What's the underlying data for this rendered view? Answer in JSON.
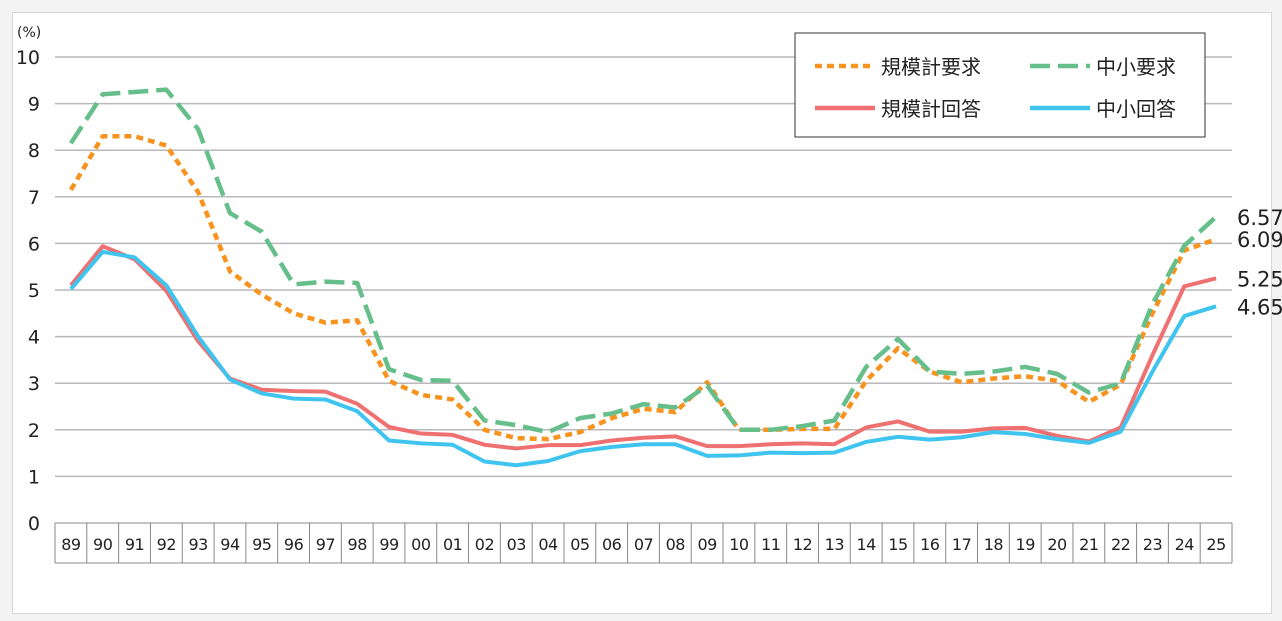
{
  "chart_data": {
    "type": "line",
    "ylabel": "(%)",
    "ylim": [
      0,
      10
    ],
    "yticks": [
      0,
      1,
      2,
      3,
      4,
      5,
      6,
      7,
      8,
      9,
      10
    ],
    "grid": true,
    "legend_position": "top-right",
    "categories": [
      "89",
      "90",
      "91",
      "92",
      "93",
      "94",
      "95",
      "96",
      "97",
      "98",
      "99",
      "00",
      "01",
      "02",
      "03",
      "04",
      "05",
      "06",
      "07",
      "08",
      "09",
      "10",
      "11",
      "12",
      "13",
      "14",
      "15",
      "16",
      "17",
      "18",
      "19",
      "20",
      "21",
      "22",
      "23",
      "24",
      "25"
    ],
    "series": [
      {
        "name": "規模計要求",
        "color": "#f7931e",
        "dash": "dotted",
        "values": [
          7.15,
          8.3,
          8.3,
          8.1,
          7.1,
          5.4,
          4.9,
          4.5,
          4.3,
          4.35,
          3.05,
          2.75,
          2.65,
          2.0,
          1.82,
          1.8,
          1.95,
          2.25,
          2.45,
          2.38,
          3.02,
          2.0,
          2.0,
          2.02,
          2.02,
          3.05,
          3.75,
          3.25,
          3.02,
          3.1,
          3.15,
          3.05,
          2.6,
          2.97,
          4.5,
          5.85,
          6.09
        ],
        "end_label": "6.09"
      },
      {
        "name": "中小要求",
        "color": "#66bf8a",
        "dash": "dashed",
        "values": [
          8.15,
          9.2,
          9.25,
          9.3,
          8.45,
          6.65,
          6.25,
          5.12,
          5.18,
          5.15,
          3.3,
          3.07,
          3.05,
          2.2,
          2.1,
          1.95,
          2.25,
          2.35,
          2.55,
          2.48,
          2.95,
          2.0,
          2.0,
          2.08,
          2.2,
          3.35,
          3.95,
          3.25,
          3.2,
          3.25,
          3.35,
          3.2,
          2.8,
          3.0,
          4.7,
          5.95,
          6.57
        ],
        "end_label": "6.57"
      },
      {
        "name": "規模計回答",
        "color": "#ef7070",
        "dash": "solid",
        "values": [
          5.1,
          5.94,
          5.66,
          4.98,
          3.9,
          3.1,
          2.86,
          2.83,
          2.82,
          2.56,
          2.06,
          1.92,
          1.89,
          1.68,
          1.6,
          1.67,
          1.67,
          1.77,
          1.83,
          1.86,
          1.65,
          1.65,
          1.69,
          1.71,
          1.69,
          2.05,
          2.18,
          1.96,
          1.96,
          2.03,
          2.04,
          1.87,
          1.75,
          2.05,
          3.6,
          5.08,
          5.25
        ],
        "end_label": "5.25"
      },
      {
        "name": "中小回答",
        "color": "#3fc4f0",
        "dash": "solid",
        "values": [
          5.02,
          5.82,
          5.7,
          5.1,
          4.0,
          3.08,
          2.78,
          2.67,
          2.65,
          2.4,
          1.77,
          1.71,
          1.68,
          1.32,
          1.24,
          1.33,
          1.54,
          1.63,
          1.69,
          1.69,
          1.44,
          1.45,
          1.51,
          1.5,
          1.51,
          1.74,
          1.85,
          1.79,
          1.84,
          1.95,
          1.91,
          1.8,
          1.72,
          1.96,
          3.25,
          4.44,
          4.65
        ],
        "end_label": "4.65"
      }
    ]
  }
}
